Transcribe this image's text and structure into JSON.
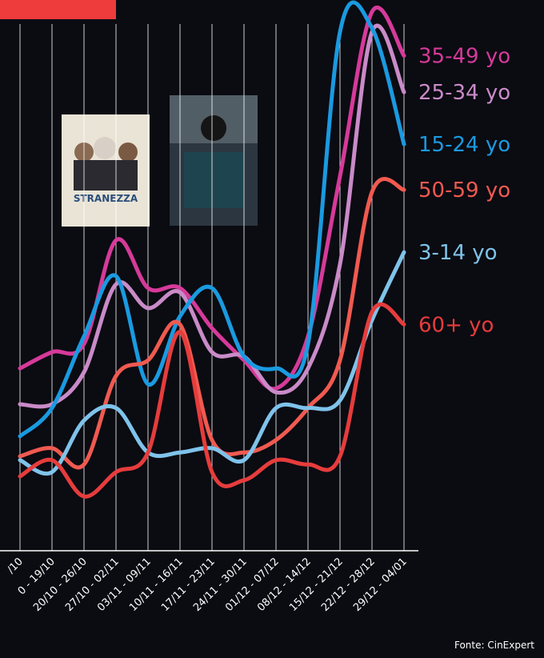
{
  "chart_data": {
    "type": "line",
    "categories": [
      "/10",
      "0 - 19/10",
      "20/10 - 26/10",
      "27/10 - 02/11",
      "03/11 - 09/11",
      "10/11 - 16/11",
      "17/11 - 23/11",
      "24/11 - 30/11",
      "01/12 - 07/12",
      "08/12 - 14/12",
      "15/12 - 21/12",
      "22/12 - 28/12",
      "29/12 - 04/01"
    ],
    "series": [
      {
        "name": "35-49 yo",
        "color": "#d63a9a",
        "values": [
          33.6,
          36.6,
          38.1,
          57.2,
          48.4,
          48.4,
          41,
          35.1,
          29.9,
          39.5,
          69,
          99.3,
          91.2
        ]
      },
      {
        "name": "25-34 yo",
        "color": "#c98bc8",
        "values": [
          27,
          27,
          32.9,
          49.1,
          44.7,
          47.6,
          36.6,
          35.8,
          29.2,
          33.6,
          52.8,
          95.6,
          84.5
        ]
      },
      {
        "name": "15-24 yo",
        "color": "#1a9ae0",
        "values": [
          21.1,
          26.3,
          39.5,
          50.6,
          30.7,
          43.2,
          48.4,
          35.8,
          33.6,
          38.1,
          95.6,
          96.3,
          74.9
        ]
      },
      {
        "name": "50-59 yo",
        "color": "#f05a50",
        "values": [
          17.4,
          18.9,
          15.9,
          32.2,
          35.1,
          41.7,
          20.4,
          18.1,
          20.4,
          26.3,
          35.1,
          66.1,
          66.5
        ]
      },
      {
        "name": "3-14 yo",
        "color": "#7fc3ea",
        "values": [
          16.7,
          14.5,
          24,
          26.3,
          18.1,
          18.1,
          18.9,
          16.7,
          26.3,
          26.3,
          27.7,
          42.5,
          55
        ]
      },
      {
        "name": "60+ yo",
        "color": "#e63c3c",
        "values": [
          13.7,
          16.7,
          10,
          14.5,
          18.1,
          40.3,
          14.5,
          13,
          16.7,
          15.9,
          17.4,
          44,
          41.7
        ]
      }
    ],
    "ylim": [
      0,
      100
    ],
    "poster_text": "STRANEZZA",
    "source": "Fonte: CinExpert"
  }
}
